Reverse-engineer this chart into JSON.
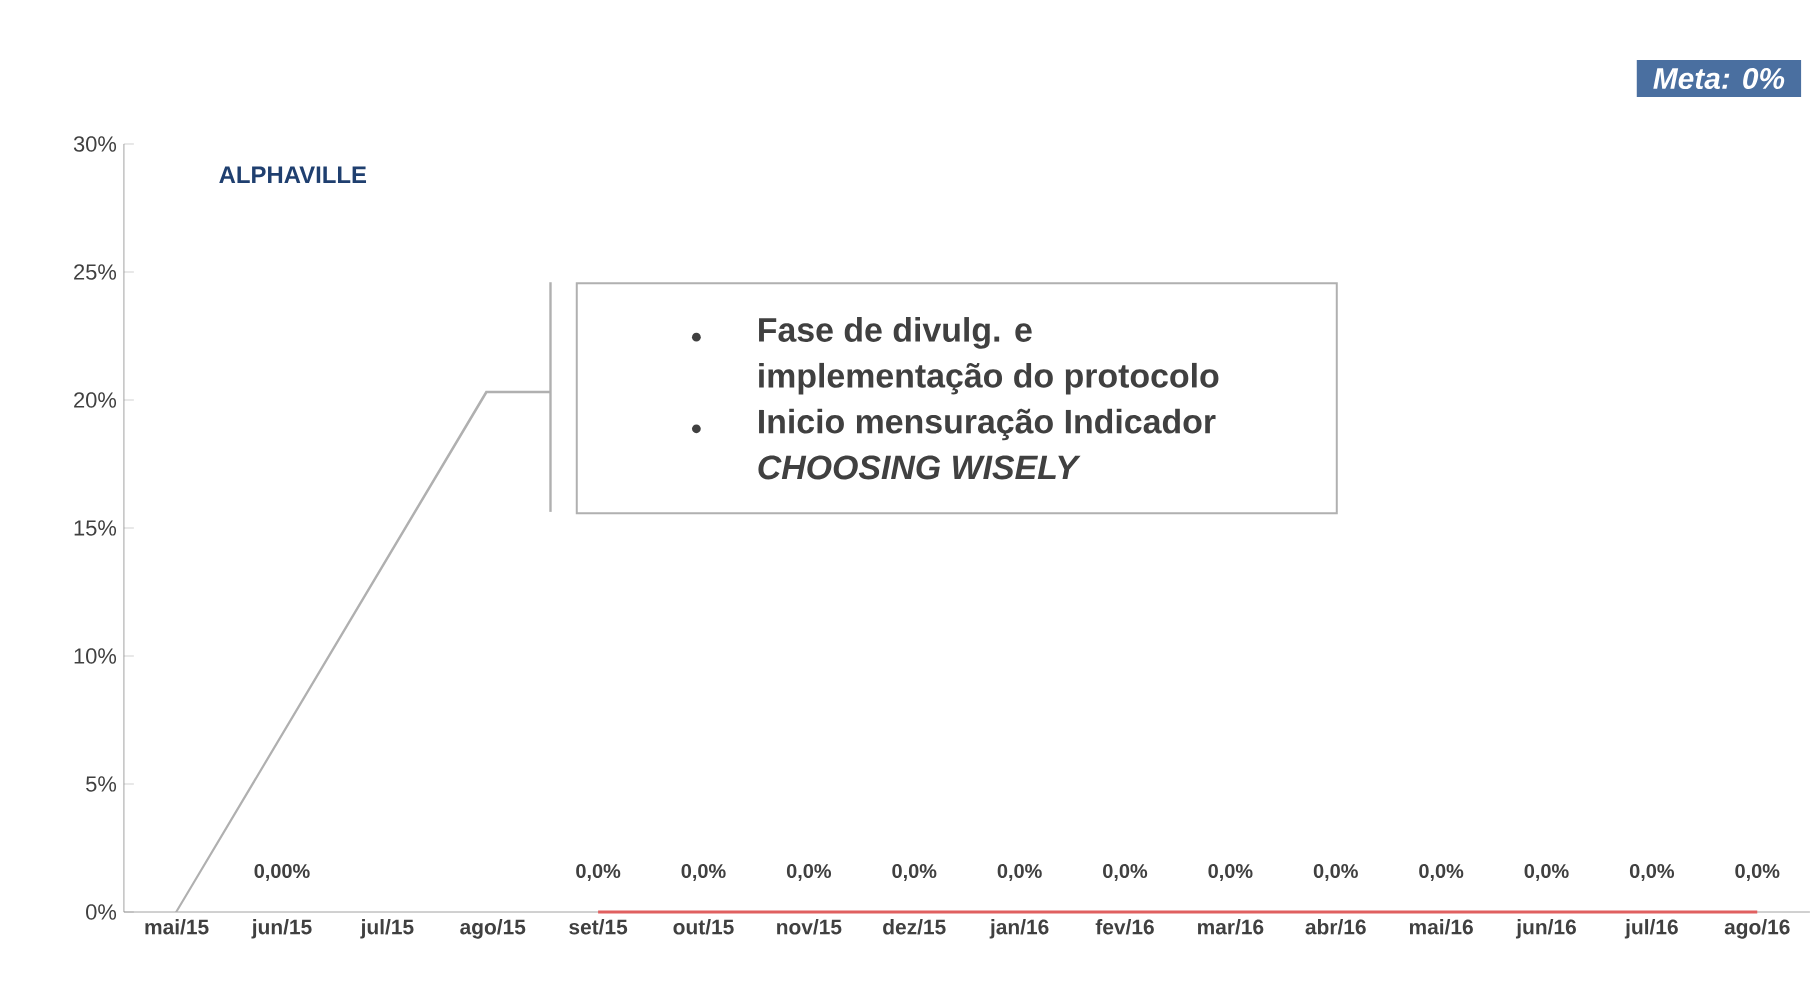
{
  "chart_data": {
    "type": "line",
    "title": "ALPHAVILLE",
    "categories": [
      "mai/15",
      "jun/15",
      "jul/15",
      "ago/15",
      "set/15",
      "out/15",
      "nov/15",
      "dez/15",
      "jan/16",
      "fev/16",
      "mar/16",
      "abr/16",
      "mai/16",
      "jun/16",
      "jul/16",
      "ago/16"
    ],
    "series": [
      {
        "color": "#e06060",
        "values": [
          null,
          null,
          null,
          null,
          0,
          0,
          0,
          0,
          0,
          0,
          0,
          0,
          0,
          0,
          0,
          0
        ],
        "value_labels": [
          null,
          null,
          null,
          null,
          "0,0%",
          "0,0%",
          "0,0%",
          "0,0%",
          "0,0%",
          "0,0%",
          "0,0%",
          "0,0%",
          "0,0%",
          "0,0%",
          "0,0%",
          "0,0%"
        ]
      }
    ],
    "ylim": [
      0,
      30
    ],
    "yticks": [
      {
        "value": 0,
        "label": "0%"
      },
      {
        "value": 5,
        "label": "5%"
      },
      {
        "value": 10,
        "label": "10%"
      },
      {
        "value": 15,
        "label": "15%"
      },
      {
        "value": 20,
        "label": "20%"
      },
      {
        "value": 25,
        "label": "25%"
      },
      {
        "value": 30,
        "label": "30%"
      }
    ],
    "annotations": [
      "Meta: 0%",
      "Fase de divulg.  e implementação do protocolo",
      "Inicio mensuração Indicador *CHOOSING WISELY*",
      "0,00%"
    ],
    "grid": false,
    "marker": "none",
    "line_style": "solid"
  }
}
